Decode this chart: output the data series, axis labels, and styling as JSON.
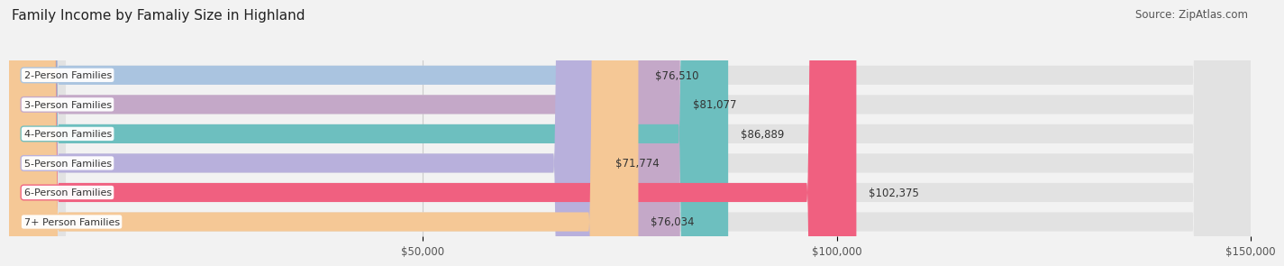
{
  "title": "Family Income by Famaliy Size in Highland",
  "source": "Source: ZipAtlas.com",
  "categories": [
    "2-Person Families",
    "3-Person Families",
    "4-Person Families",
    "5-Person Families",
    "6-Person Families",
    "7+ Person Families"
  ],
  "values": [
    76510,
    81077,
    86889,
    71774,
    102375,
    76034
  ],
  "labels": [
    "$76,510",
    "$81,077",
    "$86,889",
    "$71,774",
    "$102,375",
    "$76,034"
  ],
  "bar_colors": [
    "#aac4e0",
    "#c4a8c8",
    "#6dbfbf",
    "#b8b0dc",
    "#f06080",
    "#f5c896"
  ],
  "background_color": "#f2f2f2",
  "bar_bg_color": "#e2e2e2",
  "xlim": [
    0,
    150000
  ],
  "xticks": [
    50000,
    100000,
    150000
  ],
  "xticklabels": [
    "$50,000",
    "$100,000",
    "$150,000"
  ],
  "title_fontsize": 11,
  "source_fontsize": 8.5,
  "bar_label_fontsize": 8.5,
  "category_fontsize": 8.0,
  "tick_fontsize": 8.5
}
